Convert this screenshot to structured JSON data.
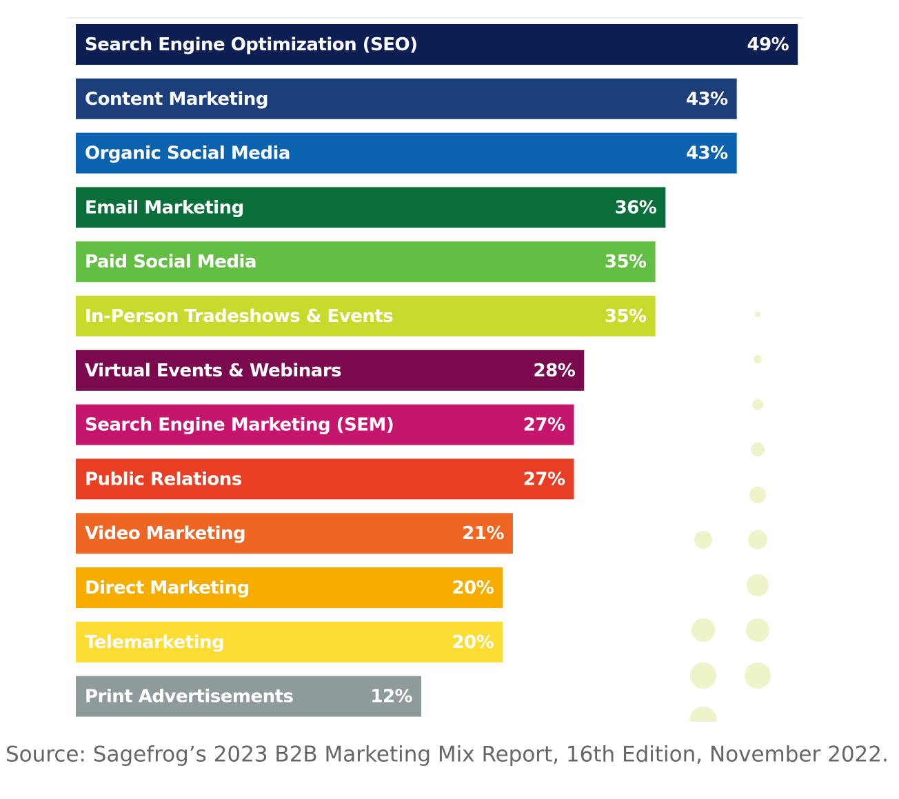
{
  "chart_data": {
    "type": "bar",
    "orientation": "horizontal",
    "categories": [
      "Search Engine Optimization (SEO)",
      "Content Marketing",
      "Organic Social Media",
      "Email Marketing",
      "Paid Social Media",
      "In-Person Tradeshows & Events",
      "Virtual Events & Webinars",
      "Search Engine Marketing (SEM)",
      "Public Relations",
      "Video Marketing",
      "Direct Marketing",
      "Telemarketing",
      "Print Advertisements"
    ],
    "values": [
      49,
      43,
      43,
      36,
      35,
      35,
      28,
      27,
      27,
      21,
      20,
      20,
      12
    ],
    "value_labels": [
      "49%",
      "43%",
      "43%",
      "36%",
      "35%",
      "35%",
      "28%",
      "27%",
      "27%",
      "21%",
      "20%",
      "20%",
      "12%"
    ],
    "colors": [
      "#0d1f52",
      "#1c3f7c",
      "#0b63b0",
      "#0a6e3a",
      "#63bf44",
      "#c8da2b",
      "#7a0a4d",
      "#c4166c",
      "#e83f24",
      "#ef6624",
      "#f7ad00",
      "#fddc33",
      "#8e9a9b"
    ],
    "source": "Source: Sagefrog’s 2023 B2B Marketing Mix Report, 16th Edition, November 2022."
  }
}
